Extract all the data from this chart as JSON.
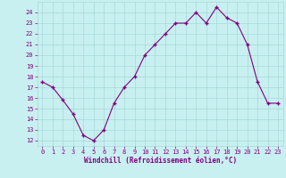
{
  "x": [
    0,
    1,
    2,
    3,
    4,
    5,
    6,
    7,
    8,
    9,
    10,
    11,
    12,
    13,
    14,
    15,
    16,
    17,
    18,
    19,
    20,
    21,
    22,
    23
  ],
  "y": [
    17.5,
    17.0,
    15.8,
    14.5,
    12.5,
    12.0,
    13.0,
    15.5,
    17.0,
    18.0,
    20.0,
    21.0,
    22.0,
    23.0,
    23.0,
    24.0,
    23.0,
    24.5,
    23.5,
    23.0,
    21.0,
    17.5,
    15.5,
    15.5
  ],
  "line_color": "#800080",
  "marker": "+",
  "marker_size": 3.5,
  "marker_lw": 1.0,
  "line_width": 0.8,
  "bg_color": "#c8f0f0",
  "grid_color": "#a8d8d8",
  "xlabel": "Windchill (Refroidissement éolien,°C)",
  "yticks": [
    12,
    13,
    14,
    15,
    16,
    17,
    18,
    19,
    20,
    21,
    22,
    23,
    24
  ],
  "xticks": [
    0,
    1,
    2,
    3,
    4,
    5,
    6,
    7,
    8,
    9,
    10,
    11,
    12,
    13,
    14,
    15,
    16,
    17,
    18,
    19,
    20,
    21,
    22,
    23
  ],
  "ylim": [
    11.5,
    25.0
  ],
  "xlim": [
    -0.5,
    23.5
  ],
  "label_color": "#800080",
  "tick_fontsize": 5.0,
  "xlabel_fontsize": 5.5,
  "xlabel_bold": true
}
